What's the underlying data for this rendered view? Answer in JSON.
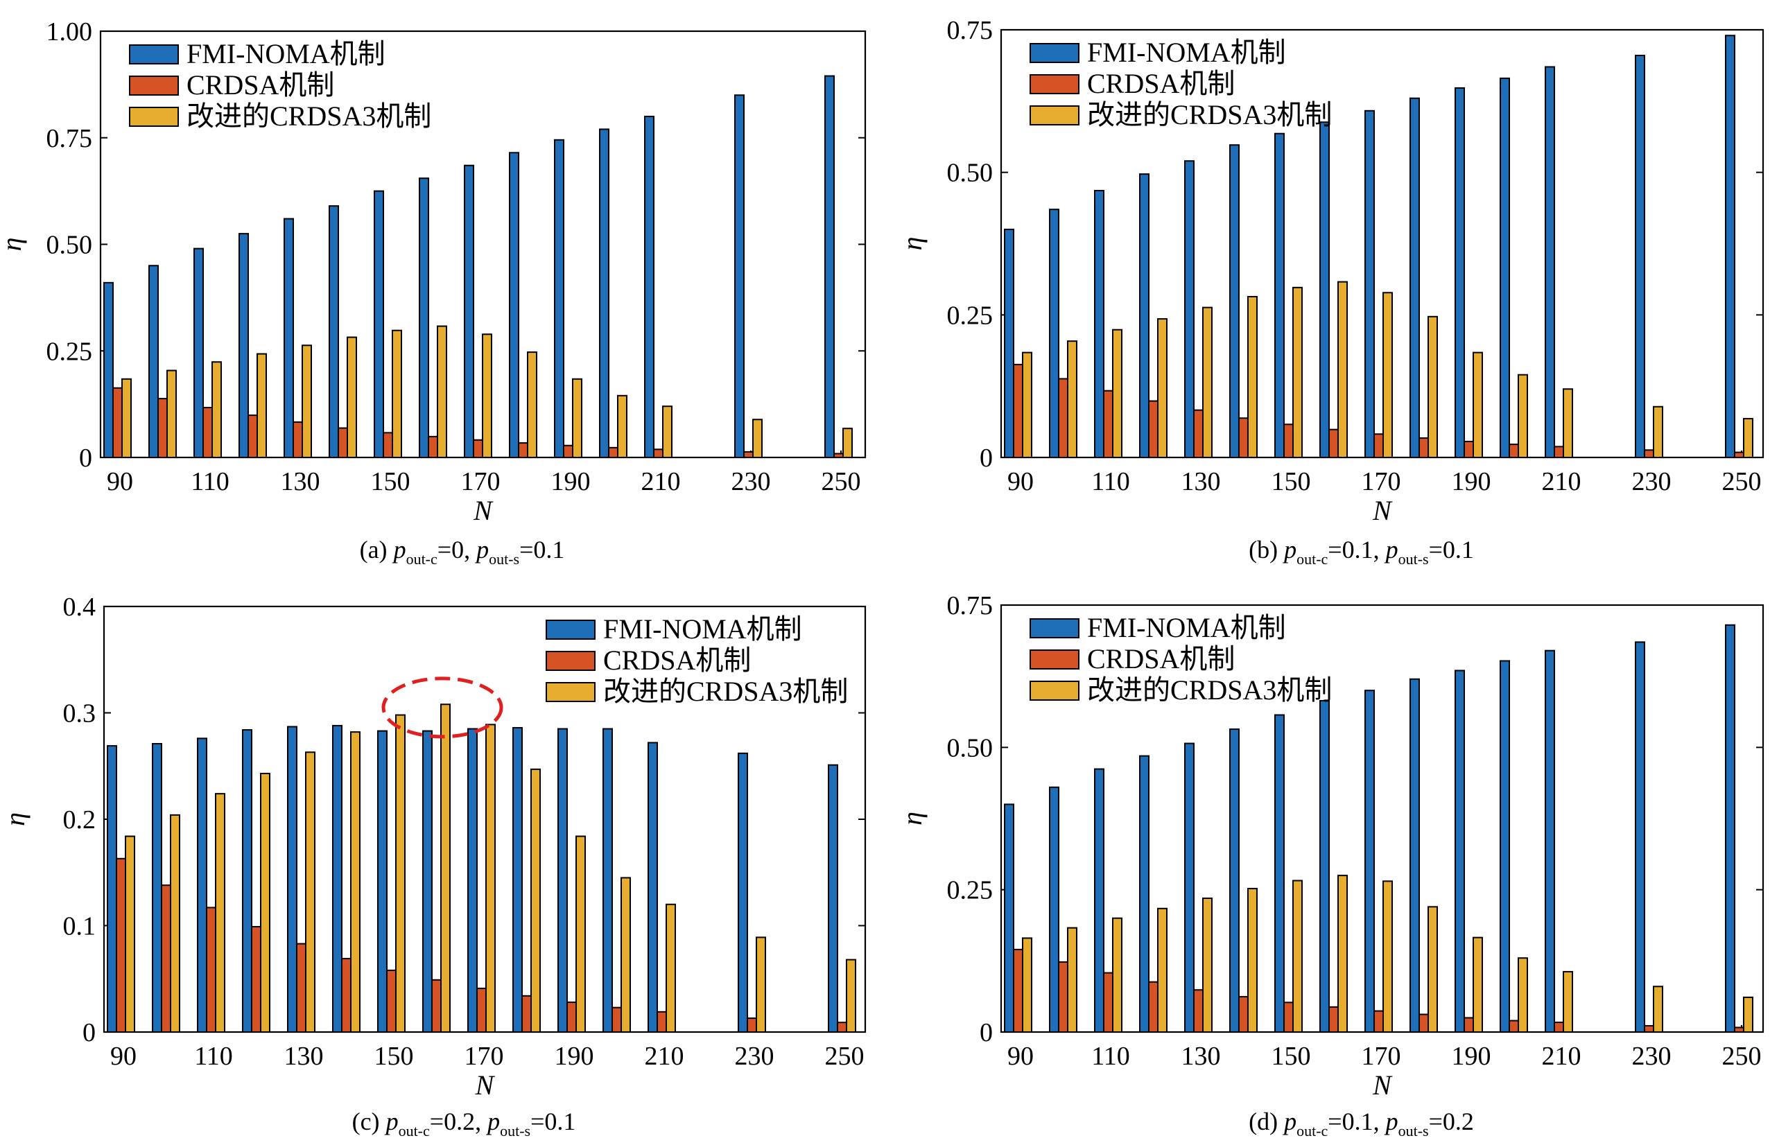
{
  "colors": {
    "fmi_noma": "#1f6fb8",
    "crdsa": "#d65325",
    "crdsa3": "#e7ad2e",
    "highlight": "#e02020"
  },
  "chart_data": [
    {
      "type": "bar",
      "caption": {
        "prefix": "(a) ",
        "p1_var": "p",
        "p1_sub": "out-c",
        "p1_val": "=0, ",
        "p2_var": "p",
        "p2_sub": "out-s",
        "p2_val": "=0.1"
      },
      "xlabel": "N",
      "ylabel": "η",
      "categories": [
        90,
        100,
        110,
        120,
        130,
        140,
        150,
        160,
        170,
        180,
        190,
        200,
        210,
        230,
        250
      ],
      "x_ticks": [
        "90",
        "110",
        "130",
        "150",
        "170",
        "190",
        "210",
        "230",
        "250"
      ],
      "ylim": [
        0,
        1.0
      ],
      "y_ticks": [
        {
          "v": 0,
          "t": "0"
        },
        {
          "v": 0.25,
          "t": "0.25"
        },
        {
          "v": 0.5,
          "t": "0.50"
        },
        {
          "v": 0.75,
          "t": "0.75"
        },
        {
          "v": 1.0,
          "t": "1.00"
        }
      ],
      "legend_position": "top-left",
      "series": [
        {
          "name": "FMI-NOMA机制",
          "color_key": "fmi_noma",
          "values": [
            0.41,
            0.45,
            0.49,
            0.525,
            0.56,
            0.59,
            0.625,
            0.655,
            0.685,
            0.715,
            0.745,
            0.77,
            0.8,
            0.85,
            0.895
          ]
        },
        {
          "name": "CRDSA机制",
          "color_key": "crdsa",
          "values": [
            0.163,
            0.138,
            0.117,
            0.099,
            0.083,
            0.069,
            0.058,
            0.049,
            0.041,
            0.034,
            0.028,
            0.023,
            0.019,
            0.013,
            0.009
          ]
        },
        {
          "name": "改进的CRDSA3机制",
          "color_key": "crdsa3",
          "values": [
            0.184,
            0.204,
            0.224,
            0.243,
            0.263,
            0.282,
            0.298,
            0.308,
            0.289,
            0.247,
            0.184,
            0.145,
            0.12,
            0.089,
            0.068
          ]
        }
      ]
    },
    {
      "type": "bar",
      "caption": {
        "prefix": "(b) ",
        "p1_var": "p",
        "p1_sub": "out-c",
        "p1_val": "=0.1, ",
        "p2_var": "p",
        "p2_sub": "out-s",
        "p2_val": "=0.1"
      },
      "xlabel": "N",
      "ylabel": "η",
      "categories": [
        90,
        100,
        110,
        120,
        130,
        140,
        150,
        160,
        170,
        180,
        190,
        200,
        210,
        230,
        250
      ],
      "x_ticks": [
        "90",
        "110",
        "130",
        "150",
        "170",
        "190",
        "210",
        "230",
        "250"
      ],
      "ylim": [
        0,
        0.75
      ],
      "y_ticks": [
        {
          "v": 0,
          "t": "0"
        },
        {
          "v": 0.25,
          "t": "0.25"
        },
        {
          "v": 0.5,
          "t": "0.50"
        },
        {
          "v": 0.75,
          "t": "0.75"
        }
      ],
      "legend_position": "top-left",
      "series": [
        {
          "name": "FMI-NOMA机制",
          "color_key": "fmi_noma",
          "values": [
            0.4,
            0.435,
            0.468,
            0.497,
            0.52,
            0.548,
            0.568,
            0.588,
            0.608,
            0.63,
            0.648,
            0.665,
            0.685,
            0.705,
            0.74
          ]
        },
        {
          "name": "CRDSA机制",
          "color_key": "crdsa",
          "values": [
            0.163,
            0.138,
            0.117,
            0.099,
            0.083,
            0.069,
            0.058,
            0.049,
            0.041,
            0.034,
            0.028,
            0.023,
            0.019,
            0.013,
            0.009
          ]
        },
        {
          "name": "改进的CRDSA3机制",
          "color_key": "crdsa3",
          "values": [
            0.184,
            0.204,
            0.224,
            0.243,
            0.263,
            0.282,
            0.298,
            0.308,
            0.289,
            0.247,
            0.184,
            0.145,
            0.12,
            0.089,
            0.068
          ]
        }
      ]
    },
    {
      "type": "bar",
      "caption": {
        "prefix": "(c) ",
        "p1_var": "p",
        "p1_sub": "out-c",
        "p1_val": "=0.2, ",
        "p2_var": "p",
        "p2_sub": "out-s",
        "p2_val": "=0.1"
      },
      "xlabel": "N",
      "ylabel": "η",
      "categories": [
        90,
        100,
        110,
        120,
        130,
        140,
        150,
        160,
        170,
        180,
        190,
        200,
        210,
        230,
        250
      ],
      "x_ticks": [
        "90",
        "110",
        "130",
        "150",
        "170",
        "190",
        "210",
        "230",
        "250"
      ],
      "ylim": [
        0,
        0.4
      ],
      "y_ticks": [
        {
          "v": 0,
          "t": "0"
        },
        {
          "v": 0.1,
          "t": "0.1"
        },
        {
          "v": 0.2,
          "t": "0.2"
        },
        {
          "v": 0.3,
          "t": "0.3"
        },
        {
          "v": 0.4,
          "t": "0.4"
        }
      ],
      "legend_position": "top-right",
      "highlight": {
        "category": 160,
        "description": "red dashed ellipse"
      },
      "series": [
        {
          "name": "FMI-NOMA机制",
          "color_key": "fmi_noma",
          "values": [
            0.269,
            0.271,
            0.276,
            0.284,
            0.287,
            0.288,
            0.283,
            0.283,
            0.285,
            0.286,
            0.285,
            0.285,
            0.272,
            0.262,
            0.251
          ]
        },
        {
          "name": "CRDSA机制",
          "color_key": "crdsa",
          "values": [
            0.163,
            0.138,
            0.117,
            0.099,
            0.083,
            0.069,
            0.058,
            0.049,
            0.041,
            0.034,
            0.028,
            0.023,
            0.019,
            0.013,
            0.009
          ]
        },
        {
          "name": "改进的CRDSA3机制",
          "color_key": "crdsa3",
          "values": [
            0.184,
            0.204,
            0.224,
            0.243,
            0.263,
            0.282,
            0.298,
            0.308,
            0.289,
            0.247,
            0.184,
            0.145,
            0.12,
            0.089,
            0.068
          ]
        }
      ]
    },
    {
      "type": "bar",
      "caption": {
        "prefix": "(d) ",
        "p1_var": "p",
        "p1_sub": "out-c",
        "p1_val": "=0.1, ",
        "p2_var": "p",
        "p2_sub": "out-s",
        "p2_val": "=0.2"
      },
      "xlabel": "N",
      "ylabel": "η",
      "categories": [
        90,
        100,
        110,
        120,
        130,
        140,
        150,
        160,
        170,
        180,
        190,
        200,
        210,
        230,
        250
      ],
      "x_ticks": [
        "90",
        "110",
        "130",
        "150",
        "170",
        "190",
        "210",
        "230",
        "250"
      ],
      "ylim": [
        0,
        0.75
      ],
      "y_ticks": [
        {
          "v": 0,
          "t": "0"
        },
        {
          "v": 0.25,
          "t": "0.25"
        },
        {
          "v": 0.5,
          "t": "0.50"
        },
        {
          "v": 0.75,
          "t": "0.75"
        }
      ],
      "legend_position": "top-left",
      "series": [
        {
          "name": "FMI-NOMA机制",
          "color_key": "fmi_noma",
          "values": [
            0.4,
            0.43,
            0.462,
            0.485,
            0.507,
            0.532,
            0.557,
            0.582,
            0.6,
            0.62,
            0.635,
            0.652,
            0.67,
            0.685,
            0.715
          ]
        },
        {
          "name": "CRDSA机制",
          "color_key": "crdsa",
          "values": [
            0.145,
            0.123,
            0.104,
            0.088,
            0.074,
            0.062,
            0.052,
            0.044,
            0.037,
            0.031,
            0.025,
            0.02,
            0.017,
            0.011,
            0.008
          ]
        },
        {
          "name": "改进的CRDSA3机制",
          "color_key": "crdsa3",
          "values": [
            0.165,
            0.183,
            0.2,
            0.217,
            0.235,
            0.252,
            0.266,
            0.275,
            0.265,
            0.22,
            0.166,
            0.13,
            0.106,
            0.08,
            0.061
          ]
        }
      ]
    }
  ]
}
